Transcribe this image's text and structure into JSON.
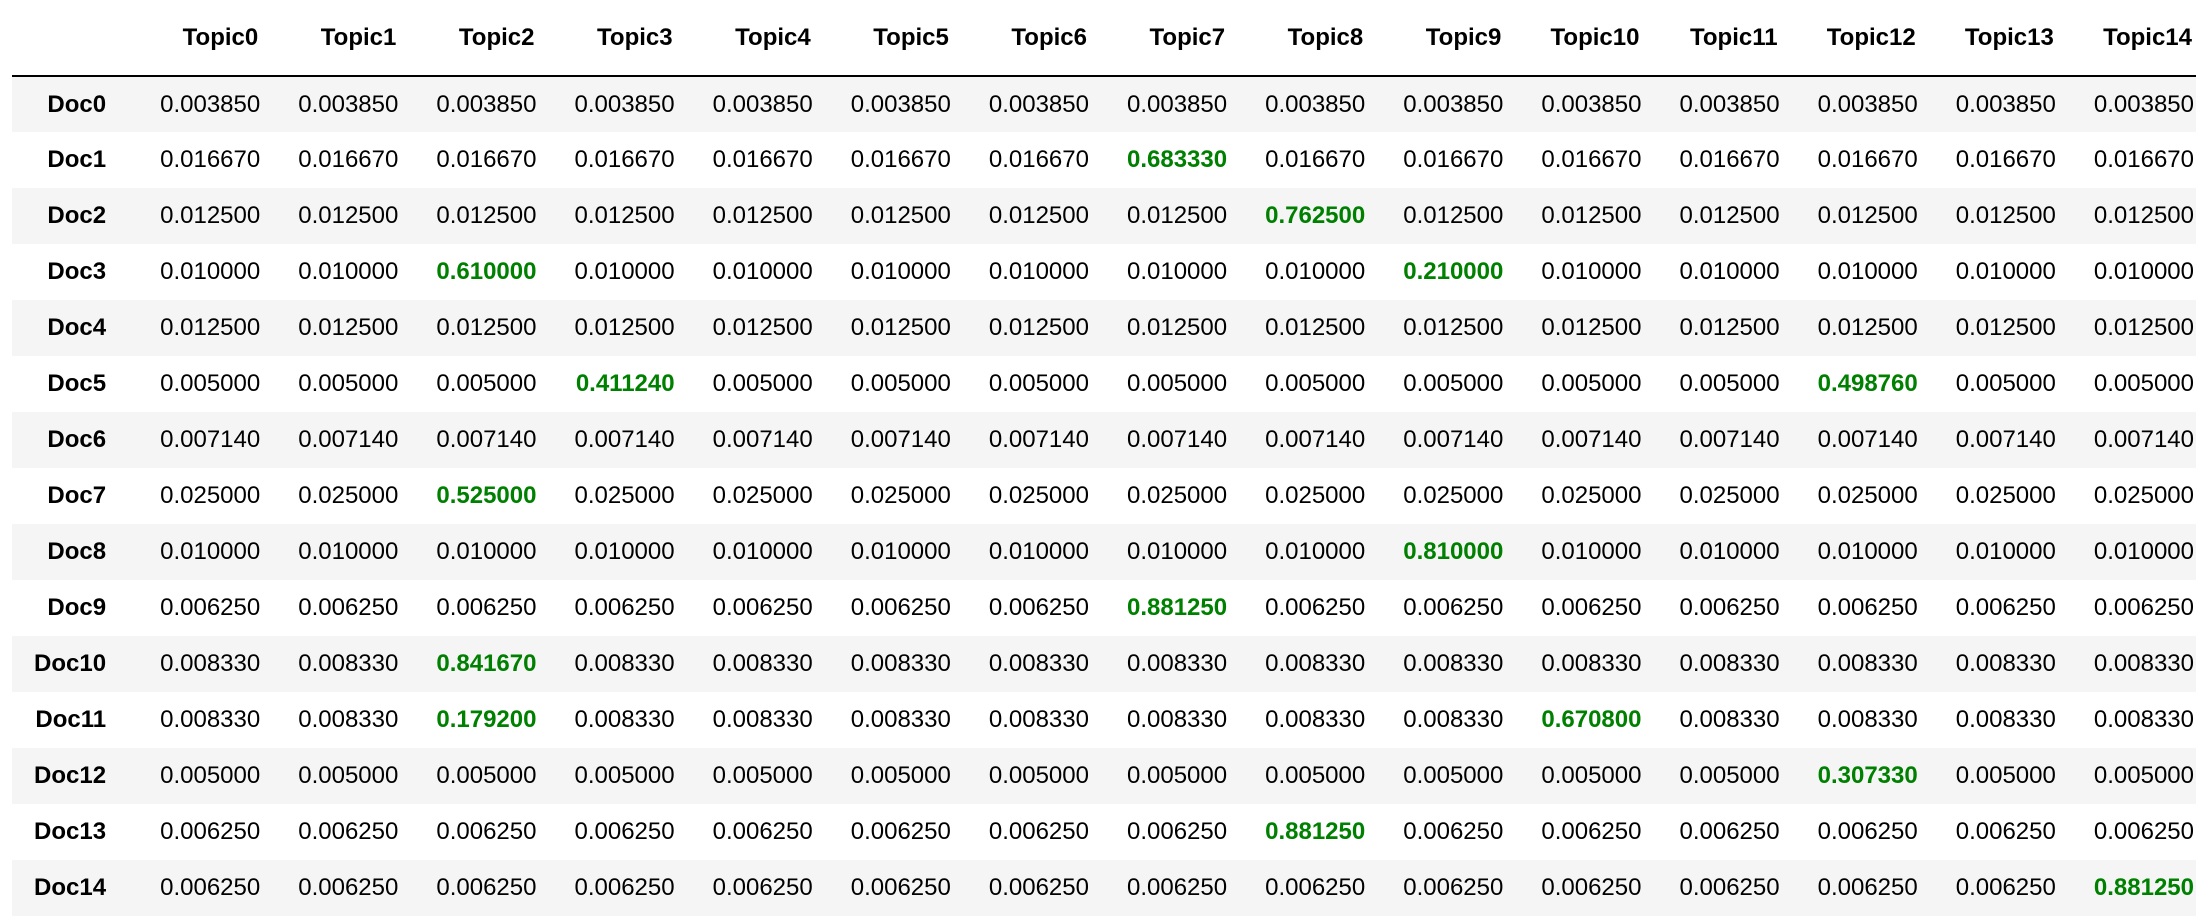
{
  "table": {
    "index_header": "",
    "highlight_color": "#008000",
    "columns": [
      "Topic0",
      "Topic1",
      "Topic2",
      "Topic3",
      "Topic4",
      "Topic5",
      "Topic6",
      "Topic7",
      "Topic8",
      "Topic9",
      "Topic10",
      "Topic11",
      "Topic12",
      "Topic13",
      "Topic14"
    ],
    "rows": [
      {
        "label": "Doc0",
        "values": [
          "0.003850",
          "0.003850",
          "0.003850",
          "0.003850",
          "0.003850",
          "0.003850",
          "0.003850",
          "0.003850",
          "0.003850",
          "0.003850",
          "0.003850",
          "0.003850",
          "0.003850",
          "0.003850",
          "0.003850"
        ],
        "highlight": []
      },
      {
        "label": "Doc1",
        "values": [
          "0.016670",
          "0.016670",
          "0.016670",
          "0.016670",
          "0.016670",
          "0.016670",
          "0.016670",
          "0.683330",
          "0.016670",
          "0.016670",
          "0.016670",
          "0.016670",
          "0.016670",
          "0.016670",
          "0.016670"
        ],
        "highlight": [
          7
        ]
      },
      {
        "label": "Doc2",
        "values": [
          "0.012500",
          "0.012500",
          "0.012500",
          "0.012500",
          "0.012500",
          "0.012500",
          "0.012500",
          "0.012500",
          "0.762500",
          "0.012500",
          "0.012500",
          "0.012500",
          "0.012500",
          "0.012500",
          "0.012500"
        ],
        "highlight": [
          8
        ]
      },
      {
        "label": "Doc3",
        "values": [
          "0.010000",
          "0.010000",
          "0.610000",
          "0.010000",
          "0.010000",
          "0.010000",
          "0.010000",
          "0.010000",
          "0.010000",
          "0.210000",
          "0.010000",
          "0.010000",
          "0.010000",
          "0.010000",
          "0.010000"
        ],
        "highlight": [
          2,
          9
        ]
      },
      {
        "label": "Doc4",
        "values": [
          "0.012500",
          "0.012500",
          "0.012500",
          "0.012500",
          "0.012500",
          "0.012500",
          "0.012500",
          "0.012500",
          "0.012500",
          "0.012500",
          "0.012500",
          "0.012500",
          "0.012500",
          "0.012500",
          "0.012500"
        ],
        "highlight": []
      },
      {
        "label": "Doc5",
        "values": [
          "0.005000",
          "0.005000",
          "0.005000",
          "0.411240",
          "0.005000",
          "0.005000",
          "0.005000",
          "0.005000",
          "0.005000",
          "0.005000",
          "0.005000",
          "0.005000",
          "0.498760",
          "0.005000",
          "0.005000"
        ],
        "highlight": [
          3,
          12
        ]
      },
      {
        "label": "Doc6",
        "values": [
          "0.007140",
          "0.007140",
          "0.007140",
          "0.007140",
          "0.007140",
          "0.007140",
          "0.007140",
          "0.007140",
          "0.007140",
          "0.007140",
          "0.007140",
          "0.007140",
          "0.007140",
          "0.007140",
          "0.007140"
        ],
        "highlight": []
      },
      {
        "label": "Doc7",
        "values": [
          "0.025000",
          "0.025000",
          "0.525000",
          "0.025000",
          "0.025000",
          "0.025000",
          "0.025000",
          "0.025000",
          "0.025000",
          "0.025000",
          "0.025000",
          "0.025000",
          "0.025000",
          "0.025000",
          "0.025000"
        ],
        "highlight": [
          2
        ]
      },
      {
        "label": "Doc8",
        "values": [
          "0.010000",
          "0.010000",
          "0.010000",
          "0.010000",
          "0.010000",
          "0.010000",
          "0.010000",
          "0.010000",
          "0.010000",
          "0.810000",
          "0.010000",
          "0.010000",
          "0.010000",
          "0.010000",
          "0.010000"
        ],
        "highlight": [
          9
        ]
      },
      {
        "label": "Doc9",
        "values": [
          "0.006250",
          "0.006250",
          "0.006250",
          "0.006250",
          "0.006250",
          "0.006250",
          "0.006250",
          "0.881250",
          "0.006250",
          "0.006250",
          "0.006250",
          "0.006250",
          "0.006250",
          "0.006250",
          "0.006250"
        ],
        "highlight": [
          7
        ]
      },
      {
        "label": "Doc10",
        "values": [
          "0.008330",
          "0.008330",
          "0.841670",
          "0.008330",
          "0.008330",
          "0.008330",
          "0.008330",
          "0.008330",
          "0.008330",
          "0.008330",
          "0.008330",
          "0.008330",
          "0.008330",
          "0.008330",
          "0.008330"
        ],
        "highlight": [
          2
        ]
      },
      {
        "label": "Doc11",
        "values": [
          "0.008330",
          "0.008330",
          "0.179200",
          "0.008330",
          "0.008330",
          "0.008330",
          "0.008330",
          "0.008330",
          "0.008330",
          "0.008330",
          "0.670800",
          "0.008330",
          "0.008330",
          "0.008330",
          "0.008330"
        ],
        "highlight": [
          2,
          10
        ]
      },
      {
        "label": "Doc12",
        "values": [
          "0.005000",
          "0.005000",
          "0.005000",
          "0.005000",
          "0.005000",
          "0.005000",
          "0.005000",
          "0.005000",
          "0.005000",
          "0.005000",
          "0.005000",
          "0.005000",
          "0.307330",
          "0.005000",
          "0.005000"
        ],
        "highlight": [
          12
        ]
      },
      {
        "label": "Doc13",
        "values": [
          "0.006250",
          "0.006250",
          "0.006250",
          "0.006250",
          "0.006250",
          "0.006250",
          "0.006250",
          "0.006250",
          "0.881250",
          "0.006250",
          "0.006250",
          "0.006250",
          "0.006250",
          "0.006250",
          "0.006250"
        ],
        "highlight": [
          8
        ]
      },
      {
        "label": "Doc14",
        "values": [
          "0.006250",
          "0.006250",
          "0.006250",
          "0.006250",
          "0.006250",
          "0.006250",
          "0.006250",
          "0.006250",
          "0.006250",
          "0.006250",
          "0.006250",
          "0.006250",
          "0.006250",
          "0.006250",
          "0.881250"
        ],
        "highlight": [
          14
        ]
      }
    ]
  }
}
